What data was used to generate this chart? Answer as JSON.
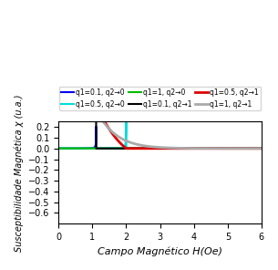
{
  "title": "",
  "xlabel": "Campo Magnético H(Oe)",
  "ylabel": "Susceptibilidade Magnética χ (u.a.)",
  "xlim": [
    0.0,
    6.0
  ],
  "ylim": [
    -0.7,
    0.25
  ],
  "yticks": [
    -0.6,
    -0.5,
    -0.4,
    -0.3,
    -0.2,
    -0.1,
    0.0,
    0.1,
    0.2
  ],
  "xticks": [
    0.0,
    1.0,
    2.0,
    3.0,
    4.0,
    5.0,
    6.0
  ],
  "curves": [
    {
      "label": "q1=0.1, q2→0",
      "color": "#0000ee",
      "lw": 1.5,
      "q1": 0.1,
      "q2_lim": 0
    },
    {
      "label": "q1=0.5, q2→0",
      "color": "#00dddd",
      "lw": 1.5,
      "q1": 0.5,
      "q2_lim": 0
    },
    {
      "label": "q1=1, q2→0",
      "color": "#00bb00",
      "lw": 1.5,
      "q1": 1.0,
      "q2_lim": 0
    },
    {
      "label": "q1=0.1, q2→1",
      "color": "#000000",
      "lw": 1.5,
      "q1": 0.1,
      "q2_lim": 1
    },
    {
      "label": "q1=0.5, q2→1",
      "color": "#dd0000",
      "lw": 2.0,
      "q1": 0.5,
      "q2_lim": 1
    },
    {
      "label": "q1=1, q2→1",
      "color": "#aaaaaa",
      "lw": 2.0,
      "q1": 1.0,
      "q2_lim": 1
    }
  ],
  "figsize": [
    3.05,
    2.96
  ],
  "dpi": 100
}
